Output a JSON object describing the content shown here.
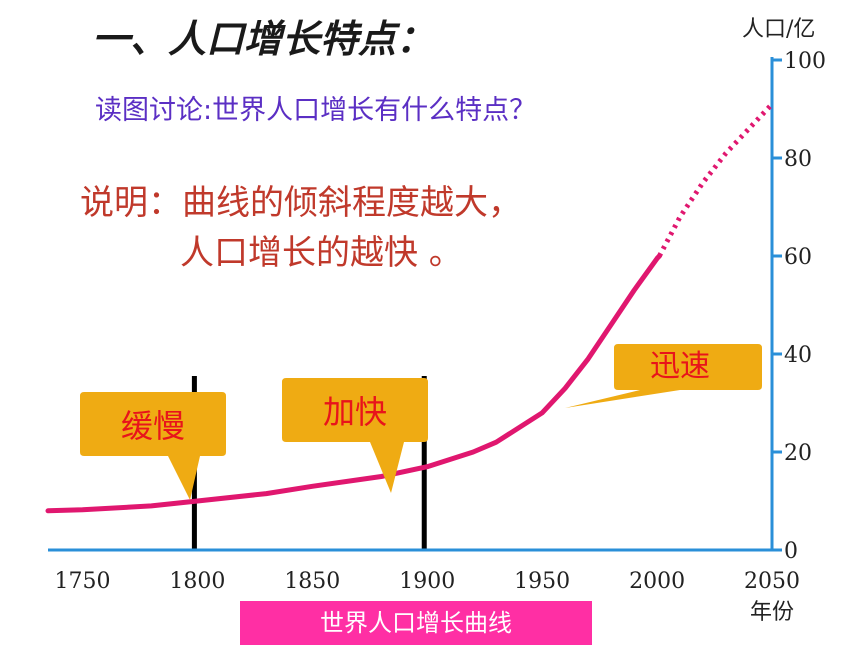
{
  "title": "一、人口增长特点：",
  "subtitle": "读图讨论:世界人口增长有什么特点？",
  "explanation": {
    "line1": "说明：曲线的倾斜程度越大，",
    "line2": "人口增长的越快 。"
  },
  "caption": "世界人口增长曲线",
  "callouts": {
    "slow": "缓慢",
    "faster": "加快",
    "rapid": "迅速"
  },
  "colors": {
    "curve": "#e0176f",
    "axis": "#2a8fd8",
    "callout": "#efab13",
    "callout_text": "#e8141b",
    "caption_bg": "#ff2fa4"
  },
  "chart_data": {
    "type": "line",
    "title": "",
    "xlabel": "年份",
    "ylabel": "人口/亿",
    "xlim": [
      1735,
      2050
    ],
    "ylim": [
      0,
      100
    ],
    "x_ticks": [
      1750,
      1800,
      1850,
      1900,
      1950,
      2000,
      2050
    ],
    "y_ticks": [
      0,
      20,
      40,
      60,
      80,
      100
    ],
    "markers": [
      1800,
      1900
    ],
    "series": [
      {
        "style": "solid",
        "x": [
          1735,
          1750,
          1780,
          1800,
          1830,
          1850,
          1880,
          1900,
          1920,
          1930,
          1950,
          1960,
          1970,
          1980,
          1990,
          2000,
          2001
        ],
        "y": [
          8,
          8.2,
          9,
          10,
          11.5,
          13,
          15,
          17,
          20,
          22,
          28,
          33,
          39,
          46,
          53,
          59.5,
          60
        ]
      },
      {
        "style": "dotted",
        "x": [
          2001,
          2010,
          2020,
          2030,
          2040,
          2050
        ],
        "y": [
          60,
          68,
          75,
          81,
          86,
          91
        ]
      }
    ]
  }
}
